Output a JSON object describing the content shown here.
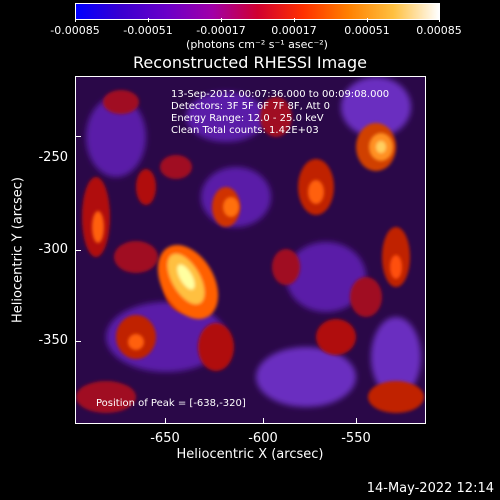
{
  "colorbar": {
    "ticks": [
      "-0.00085",
      "-0.00051",
      "-0.00017",
      "0.00017",
      "0.00051",
      "0.00085"
    ],
    "units": "(photons cm⁻² s⁻¹ asec⁻²)",
    "colors": [
      "#0000ff",
      "#3a00d0",
      "#6a00c8",
      "#a000a8",
      "#d00030",
      "#ff3000",
      "#ff8000",
      "#ffc040",
      "#ffffff"
    ]
  },
  "title": "Reconstructed RHESSI Image",
  "info": {
    "line1": "13-Sep-2012 00:07:36.000 to 00:09:08.000",
    "line2": "Detectors: 3F 5F 6F 7F 8F, Att 0",
    "line3": "Energy Range: 12.0 - 25.0 keV",
    "line4": "Clean     Total counts: 1.42E+03"
  },
  "peak_label": "Position of Peak = [-638,-320]",
  "axes": {
    "xlabel": "Heliocentric X (arcsec)",
    "ylabel": "Heliocentric Y (arcsec)",
    "xticks": [
      "-650",
      "-600",
      "-550"
    ],
    "yticks": [
      "-250",
      "-300",
      "-350"
    ]
  },
  "timestamp": "14-May-2022 12:14"
}
